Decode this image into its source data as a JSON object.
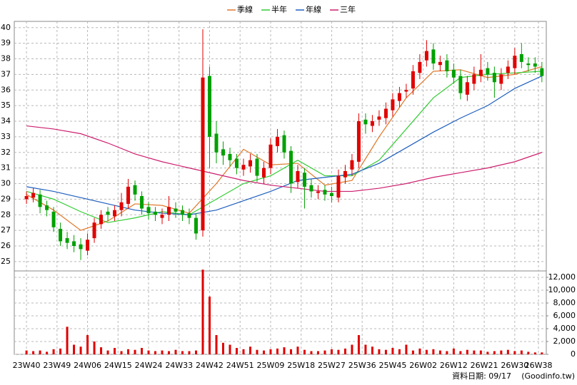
{
  "chart_data": {
    "type": "candlestick",
    "x": [
      0,
      2,
      4,
      6,
      8,
      10,
      12,
      14,
      16,
      18,
      20,
      22,
      24,
      26,
      28,
      30,
      32,
      34,
      36,
      38,
      40,
      42,
      44,
      46,
      48,
      50,
      52,
      54,
      56,
      58,
      60,
      62,
      64,
      66,
      68,
      70,
      72,
      74,
      76,
      78,
      80,
      82,
      84,
      86,
      88,
      90,
      92,
      94,
      96,
      98,
      100,
      102,
      104,
      106,
      108,
      110,
      112,
      114,
      116,
      118,
      120,
      122,
      124,
      126,
      128,
      130,
      132,
      134,
      136,
      138,
      140,
      142,
      144,
      146,
      148,
      150,
      152
    ],
    "open": [
      29.0,
      29.1,
      29.3,
      28.6,
      28.2,
      27.1,
      26.5,
      26.3,
      26.1,
      25.7,
      26.5,
      27.4,
      28.2,
      27.9,
      28.3,
      28.7,
      29.9,
      29.2,
      28.5,
      28.2,
      27.8,
      28.0,
      28.4,
      28.3,
      28.1,
      27.8,
      27.0,
      36.9,
      33.2,
      32.2,
      31.9,
      31.6,
      30.9,
      31.1,
      31.6,
      30.4,
      31.0,
      32.4,
      33.1,
      32.1,
      30.1,
      30.7,
      29.9,
      29.4,
      29.6,
      29.4,
      29.1,
      30.4,
      30.9,
      31.4,
      34.1,
      33.7,
      34.1,
      34.2,
      34.7,
      35.3,
      35.9,
      36.1,
      37.1,
      37.9,
      38.6,
      37.6,
      37.9,
      37.3,
      36.9,
      35.7,
      36.4,
      36.9,
      37.4,
      37.1,
      36.4,
      37.1,
      37.4,
      38.3,
      37.7,
      37.7,
      37.4
    ],
    "high": [
      29.5,
      29.7,
      29.6,
      28.9,
      28.5,
      27.5,
      26.9,
      26.7,
      26.5,
      26.8,
      27.8,
      28.3,
      28.5,
      28.6,
      29.4,
      30.3,
      30.2,
      29.5,
      28.8,
      28.5,
      28.4,
      29.2,
      28.8,
      28.6,
      28.4,
      28.1,
      39.9,
      37.5,
      34.0,
      32.7,
      32.3,
      31.9,
      31.6,
      31.9,
      31.9,
      31.4,
      32.9,
      33.5,
      33.4,
      32.4,
      31.2,
      31.0,
      30.3,
      29.9,
      29.9,
      29.8,
      30.9,
      31.2,
      31.9,
      34.5,
      34.5,
      34.4,
      34.7,
      35.2,
      35.8,
      36.2,
      36.4,
      37.6,
      38.3,
      39.2,
      39.0,
      38.2,
      38.3,
      37.7,
      37.3,
      36.9,
      37.5,
      38.3,
      37.8,
      37.5,
      37.4,
      37.9,
      38.7,
      39.0,
      38.1,
      38.1,
      37.8
    ],
    "low": [
      28.7,
      28.8,
      28.1,
      27.9,
      26.9,
      26.0,
      25.8,
      25.6,
      25.1,
      25.4,
      26.2,
      27.1,
      27.6,
      27.6,
      27.9,
      28.4,
      28.9,
      28.0,
      27.7,
      27.6,
      27.4,
      27.6,
      27.8,
      27.6,
      27.4,
      26.4,
      26.6,
      31.0,
      31.3,
      31.2,
      31.1,
      30.6,
      30.5,
      30.7,
      30.1,
      30.0,
      30.6,
      32.0,
      31.6,
      29.4,
      29.7,
      28.4,
      29.1,
      29.0,
      28.9,
      28.8,
      28.8,
      30.0,
      30.5,
      31.0,
      33.2,
      33.3,
      33.7,
      33.8,
      34.3,
      34.9,
      35.5,
      35.7,
      36.7,
      37.5,
      37.3,
      37.2,
      36.8,
      36.4,
      35.4,
      35.3,
      36.0,
      36.5,
      36.6,
      35.5,
      36.0,
      36.7,
      37.0,
      37.4,
      37.2,
      37.1,
      36.5
    ],
    "close": [
      29.2,
      29.4,
      28.5,
      28.3,
      27.2,
      26.3,
      26.2,
      26.0,
      25.8,
      26.4,
      27.5,
      28.0,
      28.0,
      28.3,
      28.8,
      29.8,
      29.3,
      28.4,
      28.1,
      28.0,
      28.0,
      28.5,
      28.2,
      28.0,
      27.8,
      26.8,
      36.8,
      33.0,
      32.0,
      31.8,
      31.5,
      31.0,
      31.2,
      31.5,
      30.5,
      31.0,
      32.5,
      33.0,
      32.0,
      30.0,
      30.8,
      29.8,
      29.5,
      29.5,
      29.3,
      29.2,
      30.5,
      30.8,
      31.5,
      34.0,
      33.8,
      34.0,
      34.3,
      34.8,
      35.4,
      35.8,
      36.0,
      37.2,
      37.8,
      38.5,
      37.7,
      37.8,
      37.2,
      36.8,
      35.8,
      36.5,
      37.0,
      37.3,
      37.0,
      36.5,
      37.0,
      37.5,
      38.2,
      37.8,
      37.6,
      37.5,
      36.9
    ],
    "volume": [
      600,
      500,
      600,
      400,
      800,
      900,
      4300,
      1500,
      1200,
      3000,
      2000,
      1100,
      600,
      1000,
      500,
      800,
      700,
      1000,
      600,
      500,
      600,
      500,
      700,
      500,
      500,
      600,
      13200,
      9000,
      3000,
      1800,
      1500,
      1000,
      800,
      1200,
      700,
      600,
      800,
      900,
      1100,
      800,
      1200,
      700,
      500,
      500,
      600,
      800,
      700,
      900,
      1500,
      3000,
      1500,
      1200,
      800,
      700,
      1000,
      800,
      1500,
      600,
      900,
      700,
      800,
      600,
      500,
      900,
      500,
      700,
      600,
      600,
      400,
      500,
      600,
      700,
      500,
      600,
      400,
      300,
      300
    ],
    "up_color": "#e00000",
    "down_color": "#00a000",
    "volume_color": "#e00000",
    "series": [
      {
        "name": "季線",
        "color": "#e0782a",
        "x": [
          0,
          8,
          16,
          24,
          32,
          40,
          48,
          56,
          64,
          72,
          80,
          88,
          96,
          104,
          112,
          120,
          128,
          136,
          144,
          152
        ],
        "values": [
          29.3,
          28.3,
          27.0,
          27.6,
          28.7,
          28.6,
          28.1,
          30.0,
          32.2,
          31.2,
          31.3,
          29.9,
          30.2,
          33.0,
          35.5,
          37.2,
          37.3,
          36.8,
          37.0,
          37.5
        ]
      },
      {
        "name": "半年",
        "color": "#33cc33",
        "x": [
          0,
          8,
          16,
          24,
          32,
          40,
          48,
          56,
          64,
          72,
          80,
          88,
          96,
          104,
          112,
          120,
          128,
          136,
          144,
          152
        ],
        "values": [
          29.5,
          29.0,
          28.2,
          27.5,
          27.8,
          28.2,
          28.0,
          29.0,
          30.0,
          30.5,
          31.5,
          30.5,
          30.5,
          31.5,
          33.5,
          35.5,
          36.8,
          37.0,
          37.1,
          37.2
        ]
      },
      {
        "name": "年線",
        "color": "#1f5fbf",
        "x": [
          0,
          8,
          16,
          24,
          32,
          40,
          48,
          56,
          64,
          72,
          80,
          88,
          96,
          104,
          112,
          120,
          128,
          136,
          144,
          152
        ],
        "values": [
          29.8,
          29.5,
          29.1,
          28.7,
          28.3,
          28.1,
          28.0,
          28.3,
          28.9,
          29.5,
          30.2,
          30.4,
          30.6,
          31.3,
          32.3,
          33.3,
          34.2,
          35.0,
          36.1,
          36.9
        ]
      },
      {
        "name": "三年",
        "color": "#cc1f6f",
        "x": [
          0,
          8,
          16,
          24,
          32,
          40,
          48,
          56,
          64,
          72,
          80,
          88,
          96,
          104,
          112,
          120,
          128,
          136,
          144,
          152
        ],
        "values": [
          33.7,
          33.5,
          33.2,
          32.6,
          31.9,
          31.4,
          31.0,
          30.6,
          30.2,
          29.9,
          29.7,
          29.5,
          29.5,
          29.7,
          30.0,
          30.4,
          30.7,
          31.0,
          31.4,
          32.0
        ]
      }
    ],
    "xlim": [
      -3.6,
      153.3
    ],
    "xticks": [
      {
        "value": 0,
        "label": "23W40"
      },
      {
        "value": 9,
        "label": "23W49"
      },
      {
        "value": 18,
        "label": "24W06"
      },
      {
        "value": 27,
        "label": "24W15"
      },
      {
        "value": 36,
        "label": "24W24"
      },
      {
        "value": 45,
        "label": "24W33"
      },
      {
        "value": 54,
        "label": "24W42"
      },
      {
        "value": 63,
        "label": "24W51"
      },
      {
        "value": 72,
        "label": "25W09"
      },
      {
        "value": 81,
        "label": "25W18"
      },
      {
        "value": 90,
        "label": "25W27"
      },
      {
        "value": 99,
        "label": "25W36"
      },
      {
        "value": 108,
        "label": "25W45"
      },
      {
        "value": 117,
        "label": "26W02"
      },
      {
        "value": 126,
        "label": "26W12"
      },
      {
        "value": 135,
        "label": "26W21"
      },
      {
        "value": 144,
        "label": "26W30"
      },
      {
        "value": 151,
        "label": "26W38"
      }
    ],
    "ylim": [
      24.4,
      40.4
    ],
    "yticks": [
      25,
      26,
      27,
      28,
      29,
      30,
      31,
      32,
      33,
      34,
      35,
      36,
      37,
      38,
      39,
      40
    ],
    "volume_ylim": [
      0,
      13000
    ],
    "volume_yticks": [
      0,
      {
        "value": 2000,
        "label": "2,000"
      },
      {
        "value": 4000,
        "label": "4,000"
      },
      {
        "value": 6000,
        "label": "6,000"
      },
      {
        "value": 8000,
        "label": "8,000"
      },
      {
        "value": 10000,
        "label": "10,000"
      },
      {
        "value": 12000,
        "label": "12,000"
      }
    ],
    "grid": true,
    "source_date": "資料日期: 09/17",
    "source": "(Goodinfo.tw)"
  }
}
